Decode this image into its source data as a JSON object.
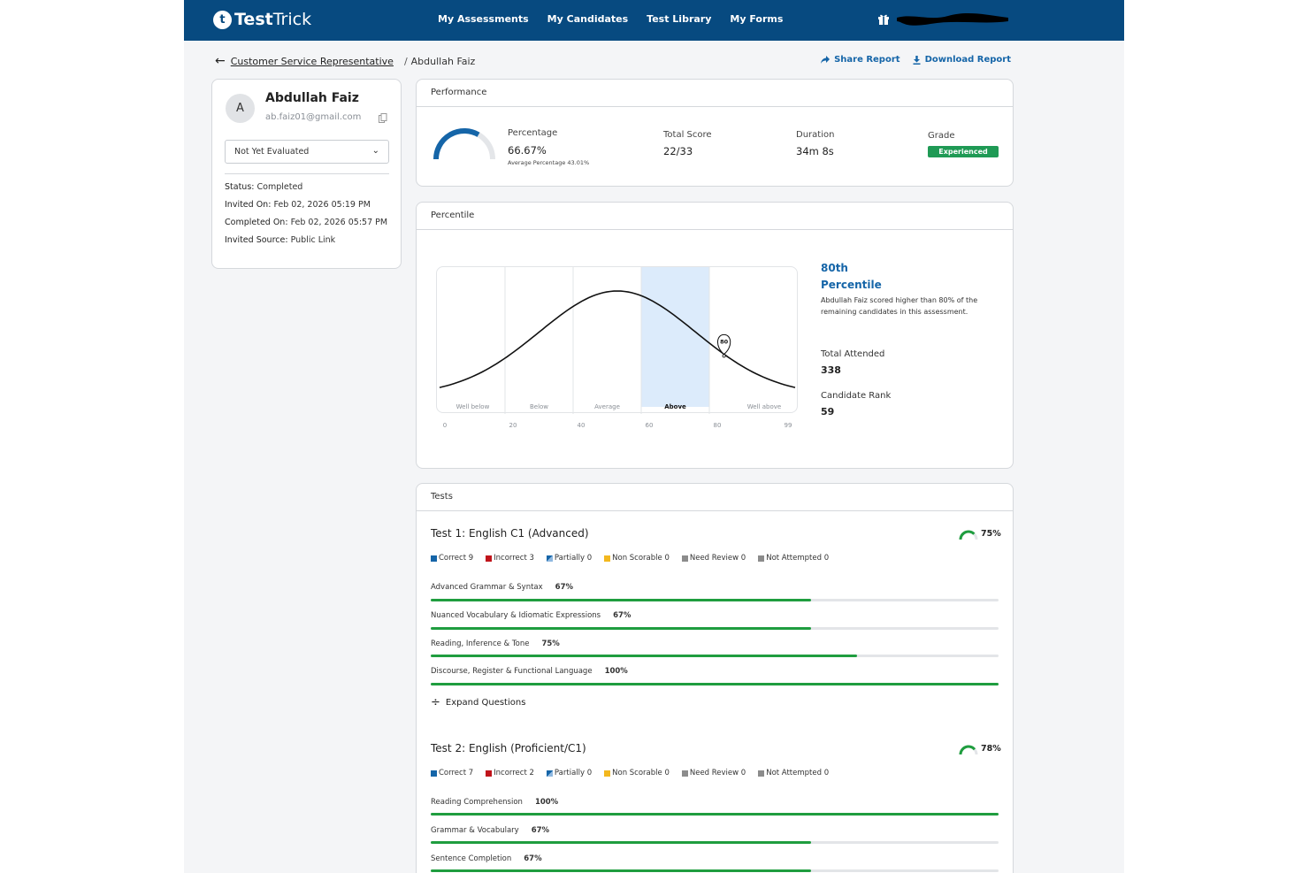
{
  "app": {
    "logo_bold": "Test",
    "logo_light": "Trick",
    "logo_badge": "t"
  },
  "nav": {
    "items": [
      "My Assessments",
      "My Candidates",
      "Test Library",
      "My Forms"
    ]
  },
  "breadcrumb": {
    "parent": "Customer Service Representative",
    "separator": "/",
    "current": "Abdullah Faiz"
  },
  "actions": {
    "share": "Share Report",
    "download": "Download Report"
  },
  "profile": {
    "avatar_letter": "A",
    "name": "Abdullah Faiz",
    "email": "ab.faiz01@gmail.com",
    "evaluation": "Not Yet Evaluated",
    "status_key": "Status:",
    "status_val": "Completed",
    "invited_key": "Invited On:",
    "invited_val": "Feb 02, 2026 05:19 PM",
    "completed_key": "Completed On:",
    "completed_val": "Feb 02, 2026 05:57 PM",
    "source_key": "Invited Source:",
    "source_val": "Public Link"
  },
  "performance": {
    "title": "Performance",
    "percentage_label": "Percentage",
    "percentage_value": "66.67%",
    "percentage_fraction": 0.6667,
    "average_label": "Average Percentage 43.01%",
    "score_label": "Total Score",
    "score_value": "22/33",
    "duration_label": "Duration",
    "duration_value": "34m 8s",
    "grade_label": "Grade",
    "grade_value": "Experienced"
  },
  "percentile": {
    "title": "Percentile",
    "rank_line1": "80th",
    "rank_line2": "Percentile",
    "description": "Abdullah Faiz scored higher than 80% of the remaining candidates in this assessment.",
    "attended_label": "Total Attended",
    "attended_value": "338",
    "rank_label": "Candidate Rank",
    "rank_value": "59",
    "marker_label": "80",
    "bands": [
      "Well below",
      "Below",
      "Average",
      "Above",
      "Well above"
    ],
    "ticks": [
      "0",
      "20",
      "40",
      "60",
      "80",
      "99"
    ],
    "marker_value": 80,
    "highlight_band": "Above"
  },
  "tests": {
    "title": "Tests",
    "expand_label": "Expand Questions",
    "list": [
      {
        "name": "Test 1: English C1 (Advanced)",
        "score": "75%",
        "score_fraction": 0.75,
        "legend": {
          "correct": "Correct 9",
          "incorrect": "Incorrect 3",
          "partially": "Partially 0",
          "non_scorable": "Non Scorable 0",
          "need_review": "Need Review 0",
          "not_attempted": "Not Attempted 0"
        },
        "skills": [
          {
            "label": "Advanced Grammar & Syntax",
            "pct": "67%",
            "value": 0.67
          },
          {
            "label": "Nuanced Vocabulary & Idiomatic Expressions",
            "pct": "67%",
            "value": 0.67
          },
          {
            "label": "Reading, Inference & Tone",
            "pct": "75%",
            "value": 0.75
          },
          {
            "label": "Discourse, Register & Functional Language",
            "pct": "100%",
            "value": 1.0
          }
        ]
      },
      {
        "name": "Test 2: English (Proficient/C1)",
        "score": "78%",
        "score_fraction": 0.78,
        "legend": {
          "correct": "Correct 7",
          "incorrect": "Incorrect 2",
          "partially": "Partially 0",
          "non_scorable": "Non Scorable 0",
          "need_review": "Need Review 0",
          "not_attempted": "Not Attempted 0"
        },
        "skills": [
          {
            "label": "Reading Comprehension",
            "pct": "100%",
            "value": 1.0
          },
          {
            "label": "Grammar & Vocabulary",
            "pct": "67%",
            "value": 0.67
          },
          {
            "label": "Sentence Completion",
            "pct": "67%",
            "value": 0.67
          }
        ]
      }
    ]
  },
  "colors": {
    "navbar": "#074a80",
    "accent": "#1565a8",
    "success": "#1f9d3f",
    "correct": "#1565a8",
    "incorrect": "#c0141b",
    "non_scorable": "#f3b81f",
    "need_review": "#8c8c8c",
    "not_attempted": "#8c8c8c",
    "band_highlight": "#dcebfb"
  }
}
